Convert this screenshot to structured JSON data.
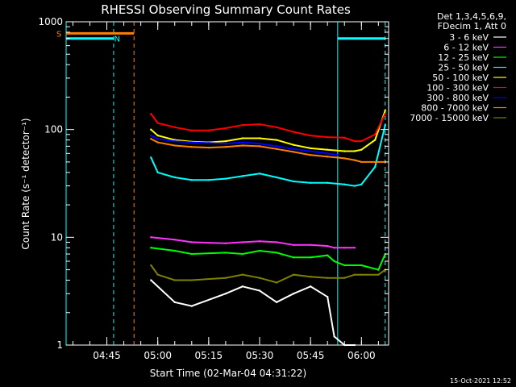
{
  "chart_data": {
    "type": "line",
    "title": "RHESSI Observing Summary Count Rates",
    "xlabel": "Start Time (02-Mar-04 04:31:22)",
    "ylabel": "Count Rate (s⁻¹ detector⁻¹)",
    "ylim": [
      1,
      1000
    ],
    "yscale": "log",
    "xlim": [
      "04:33",
      "06:08"
    ],
    "x_ticks": [
      "04:45",
      "05:00",
      "05:15",
      "05:30",
      "05:45",
      "06:00"
    ],
    "y_ticks": [
      "1",
      "10",
      "100",
      "1000"
    ],
    "legend_header": [
      "Det 1,3,4,5,6,9,",
      "FDecim 1, Att 0"
    ],
    "legend_placement": "right",
    "series": [
      {
        "name": "3 - 6 keV",
        "color": "#ffffff",
        "x": [
          "04:58",
          "05:05",
          "05:10",
          "05:20",
          "05:25",
          "05:30",
          "05:35",
          "05:40",
          "05:45",
          "05:50",
          "05:52",
          "05:55",
          "05:58"
        ],
        "values": [
          4,
          2.5,
          2.3,
          3,
          3.5,
          3.2,
          2.5,
          3,
          3.5,
          2.8,
          1.2,
          1,
          1
        ]
      },
      {
        "name": "6 - 12 keV",
        "color": "#ff33ff",
        "x": [
          "04:58",
          "05:05",
          "05:10",
          "05:20",
          "05:25",
          "05:30",
          "05:35",
          "05:40",
          "05:45",
          "05:50",
          "05:52",
          "05:55",
          "05:58"
        ],
        "values": [
          10,
          9.5,
          9,
          8.8,
          9,
          9.2,
          9,
          8.5,
          8.5,
          8.3,
          8,
          8,
          8
        ]
      },
      {
        "name": "12 - 25 keV",
        "color": "#00ff00",
        "x": [
          "04:58",
          "05:05",
          "05:10",
          "05:20",
          "05:25",
          "05:30",
          "05:35",
          "05:40",
          "05:45",
          "05:50",
          "05:52",
          "05:55",
          "05:58",
          "06:00",
          "06:05",
          "06:07"
        ],
        "values": [
          8,
          7.5,
          7,
          7.2,
          7,
          7.5,
          7.2,
          6.5,
          6.5,
          6.8,
          6,
          5.5,
          5.5,
          5.5,
          5,
          7
        ]
      },
      {
        "name": "25 - 50 keV",
        "color": "#00ffff",
        "x": [
          "04:58",
          "05:00",
          "05:05",
          "05:10",
          "05:15",
          "05:20",
          "05:25",
          "05:30",
          "05:35",
          "05:40",
          "05:45",
          "05:50",
          "05:55",
          "05:58",
          "06:00",
          "06:04",
          "06:07"
        ],
        "values": [
          55,
          40,
          36,
          34,
          34,
          35,
          37,
          39,
          36,
          33,
          32,
          32,
          31,
          30,
          31,
          45,
          110
        ]
      },
      {
        "name": "50 - 100 keV",
        "color": "#ffff00",
        "x": [
          "04:58",
          "05:00",
          "05:05",
          "05:10",
          "05:15",
          "05:20",
          "05:25",
          "05:30",
          "05:35",
          "05:40",
          "05:45",
          "05:50",
          "05:55",
          "05:58",
          "06:00",
          "06:04",
          "06:07"
        ],
        "values": [
          100,
          88,
          80,
          77,
          76,
          78,
          83,
          83,
          80,
          72,
          67,
          65,
          63,
          63,
          65,
          80,
          150
        ]
      },
      {
        "name": "100 - 300 keV",
        "color": "#ff0000",
        "x": [
          "04:58",
          "05:00",
          "05:05",
          "05:10",
          "05:15",
          "05:20",
          "05:25",
          "05:30",
          "05:35",
          "05:40",
          "05:45",
          "05:50",
          "05:55",
          "05:58",
          "06:00",
          "06:04",
          "06:07"
        ],
        "values": [
          140,
          115,
          105,
          98,
          98,
          103,
          110,
          112,
          105,
          95,
          88,
          85,
          84,
          78,
          78,
          90,
          140
        ]
      },
      {
        "name": "300 - 800 keV",
        "color": "#0000ff",
        "x": [
          "04:58",
          "05:00",
          "05:05",
          "05:10",
          "05:15",
          "05:20",
          "05:25",
          "05:30",
          "05:35",
          "05:40",
          "05:45",
          "05:50",
          "05:53"
        ],
        "values": [
          88,
          82,
          78,
          76,
          75,
          74,
          76,
          74,
          70,
          66,
          63,
          60,
          58
        ]
      },
      {
        "name": "800 - 7000 keV",
        "color": "#ff8000",
        "x": [
          "04:58",
          "05:00",
          "05:05",
          "05:10",
          "05:15",
          "05:20",
          "05:25",
          "05:30",
          "05:35",
          "05:40",
          "05:45",
          "05:50",
          "05:55",
          "05:58",
          "06:00",
          "06:04",
          "06:07"
        ],
        "values": [
          82,
          76,
          71,
          69,
          68,
          69,
          71,
          70,
          66,
          62,
          58,
          56,
          54,
          52,
          50,
          50,
          50
        ]
      },
      {
        "name": "7000 - 15000 keV",
        "color": "#808000",
        "x": [
          "04:58",
          "05:00",
          "05:05",
          "05:10",
          "05:20",
          "05:25",
          "05:30",
          "05:35",
          "05:40",
          "05:45",
          "05:50",
          "05:55",
          "05:58",
          "06:00",
          "06:05",
          "06:07"
        ],
        "values": [
          5.5,
          4.5,
          4,
          4,
          4.2,
          4.5,
          4.2,
          3.8,
          4.5,
          4.3,
          4.2,
          4.2,
          4.5,
          4.5,
          4.5,
          5
        ]
      }
    ],
    "annotations": [
      {
        "text": "S",
        "color": "#ff8000",
        "x": "04:33",
        "y": 780
      },
      {
        "text": "N",
        "color": "#00ffff",
        "x": "04:50",
        "y": 700
      }
    ],
    "flag_segments": [
      {
        "label": "S",
        "color": "#ff8000",
        "x": [
          "04:33",
          "04:53"
        ],
        "y": 780
      },
      {
        "label": "N",
        "color": "#00ffff",
        "x": [
          "04:33",
          "04:47"
        ],
        "y": 700
      },
      {
        "label": "N",
        "color": "#00ffff",
        "x": [
          "05:53",
          "06:07"
        ],
        "y": 700
      }
    ],
    "vertical_markers": [
      {
        "x": "04:33",
        "color": "#00ffff",
        "style": "solid"
      },
      {
        "x": "04:47",
        "color": "#00ffff",
        "style": "dashed"
      },
      {
        "x": "04:53",
        "color": "#ff8000",
        "style": "dashed"
      },
      {
        "x": "05:53",
        "color": "#00ffff",
        "style": "solid"
      },
      {
        "x": "06:07",
        "color": "#00ffff",
        "style": "dashed"
      }
    ]
  },
  "footer": {
    "timestamp": "15-Oct-2021 12:52"
  }
}
